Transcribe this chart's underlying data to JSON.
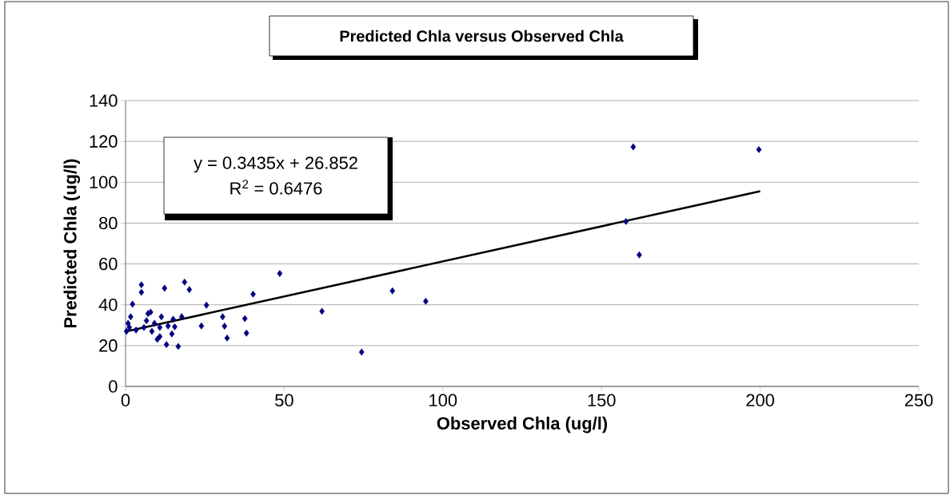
{
  "chart_data": {
    "type": "scatter",
    "title": "Predicted Chla versus Observed Chla",
    "xlabel": "Observed Chla (ug/l)",
    "ylabel": "Predicted Chla (ug/l)",
    "annotations": [
      "y = 0.3435x + 26.852",
      "R$^{2}$ = 0.6476"
    ],
    "xlim": [
      0,
      250
    ],
    "ylim": [
      0,
      140
    ],
    "xticks": [
      0,
      50,
      100,
      150,
      200,
      250
    ],
    "yticks": [
      0,
      20,
      40,
      60,
      80,
      100,
      120,
      140
    ],
    "grid": "y",
    "series": [
      {
        "type": "scatter",
        "marker": "diamond",
        "color": "#000080",
        "x": [
          5.0,
          5.0,
          12.3,
          18.6,
          20.1,
          48.6,
          40.2,
          2.2,
          25.5,
          7.9,
          7.1,
          1.6,
          11.3,
          17.7,
          30.6,
          37.6,
          15.0,
          0.8,
          6.6,
          23.9,
          31.2,
          15.5,
          0.3,
          10.8,
          8.3,
          14.6,
          38.1,
          32.0,
          10.0,
          12.9,
          16.6,
          5.8,
          3.3,
          9.1,
          13.4,
          1.2,
          10.8,
          74.4,
          61.9,
          84.1,
          94.6,
          160.0,
          199.6,
          157.7,
          161.9
        ],
        "values": [
          49.8,
          46.1,
          48.1,
          51.1,
          47.4,
          55.3,
          45.2,
          40.3,
          39.8,
          36.4,
          35.7,
          34.1,
          34.1,
          34.1,
          34.1,
          33.2,
          32.9,
          30.9,
          32.2,
          29.6,
          29.5,
          29.2,
          27.0,
          28.9,
          27.0,
          25.7,
          26.1,
          23.7,
          23.1,
          20.5,
          19.6,
          28.9,
          27.6,
          30.9,
          29.6,
          28.9,
          24.4,
          16.8,
          36.8,
          46.8,
          41.7,
          117.3,
          116.0,
          80.8,
          64.4
        ]
      },
      {
        "type": "line",
        "marker": "none",
        "line_style": "solid",
        "color": "#000000",
        "x": [
          0,
          200
        ],
        "values": [
          26.9,
          95.6
        ]
      }
    ]
  }
}
